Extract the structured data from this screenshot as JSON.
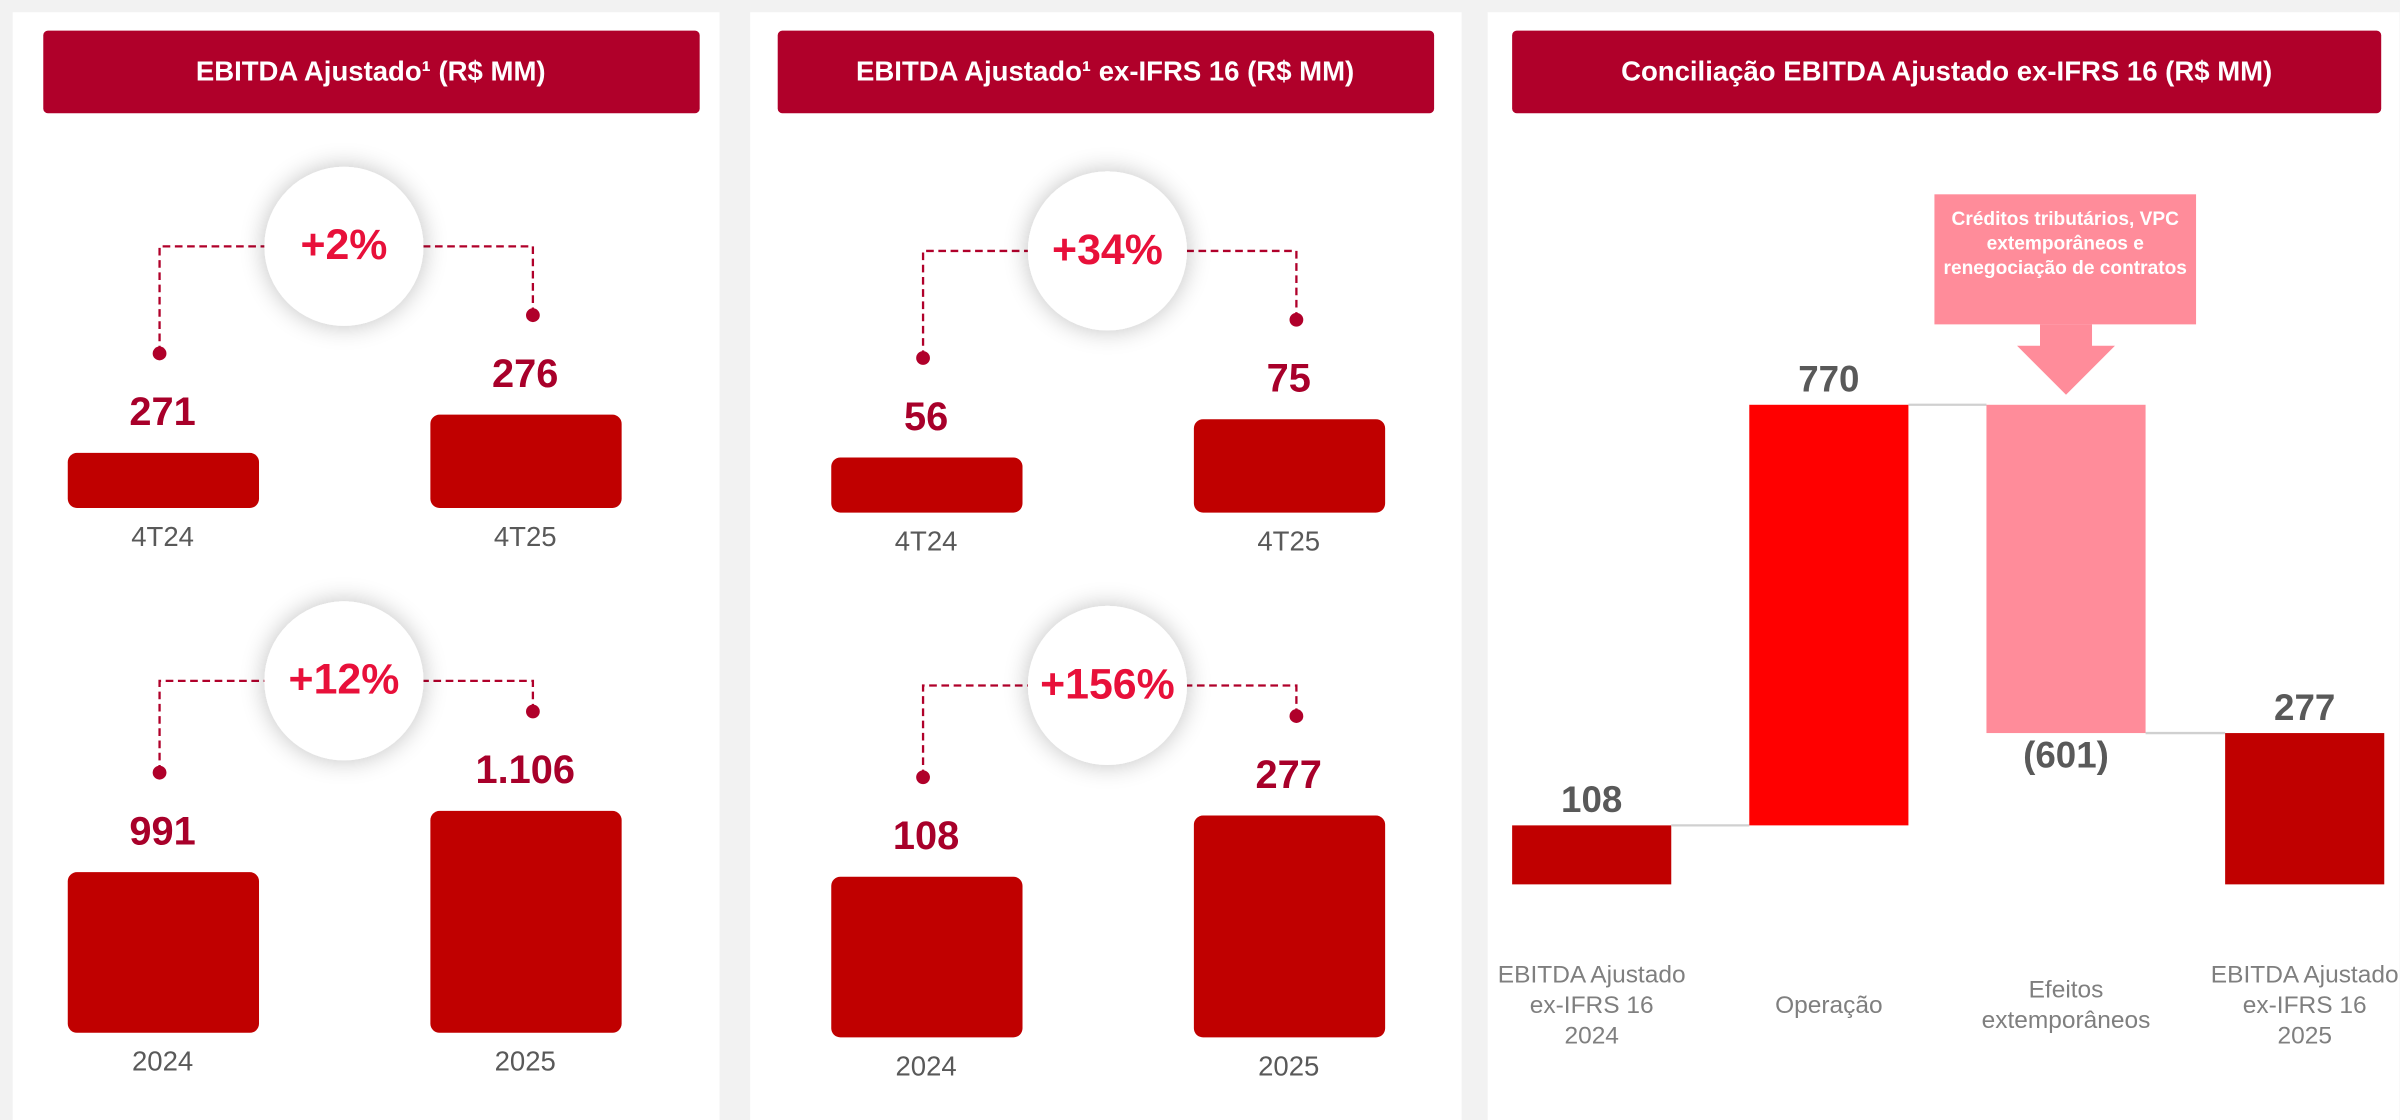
{
  "chart_data": [
    {
      "type": "comparison",
      "title": "EBITDA Ajustado¹ (R$ MM)",
      "color": "#c00000",
      "groups": [
        {
          "categories": [
            "4T24",
            "4T25"
          ],
          "values": [
            271,
            276
          ],
          "value_labels": [
            "271",
            "276"
          ],
          "change": "+2%"
        },
        {
          "categories": [
            "2024",
            "2025"
          ],
          "values": [
            991,
            1106
          ],
          "value_labels": [
            "991",
            "1.106"
          ],
          "change": "+12%"
        }
      ]
    },
    {
      "type": "comparison",
      "title": "EBITDA Ajustado¹ ex-IFRS 16 (R$ MM)",
      "color": "#c00000",
      "groups": [
        {
          "categories": [
            "4T24",
            "4T25"
          ],
          "values": [
            56,
            75
          ],
          "value_labels": [
            "56",
            "75"
          ],
          "change": "+34%"
        },
        {
          "categories": [
            "2024",
            "2025"
          ],
          "values": [
            108,
            277
          ],
          "value_labels": [
            "108",
            "277"
          ],
          "change": "+156%"
        }
      ]
    },
    {
      "type": "waterfall",
      "title": "Conciliação EBITDA Ajustado ex-IFRS 16 (R$ MM)",
      "categories": [
        "EBITDA Ajustado\nex-IFRS 16\n2024",
        "Operação",
        "Efeitos\nextemporâneos",
        "EBITDA Ajustado\nex-IFRS 16\n2025"
      ],
      "values": [
        108,
        770,
        -601,
        277
      ],
      "value_labels": [
        "108",
        "770",
        "(601)",
        "277"
      ],
      "colors": [
        "#c00000",
        "#ff0000",
        "#ff8c9a",
        "#c00000"
      ],
      "annotation": "Créditos tributários, VPC extemporâneos e renegociação de contratos"
    }
  ]
}
